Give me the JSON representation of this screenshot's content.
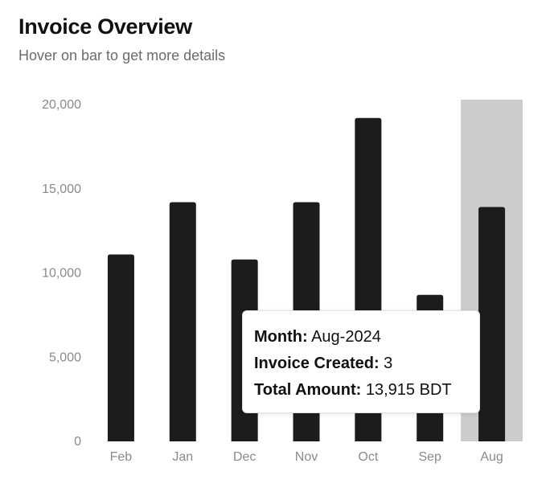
{
  "header": {
    "title": "Invoice Overview",
    "subtitle": "Hover on bar to get more details"
  },
  "chart_data": {
    "type": "bar",
    "categories": [
      "Feb",
      "Jan",
      "Dec",
      "Nov",
      "Oct",
      "Sep",
      "Aug"
    ],
    "values": [
      11100,
      14200,
      10800,
      14200,
      19200,
      8700,
      13915
    ],
    "ylim": [
      0,
      20000
    ],
    "yticks": [
      0,
      5000,
      10000,
      15000,
      20000
    ],
    "ytick_labels": [
      "0",
      "5,000",
      "10,000",
      "15,000",
      "20,000"
    ],
    "bar_color": "#1c1c1e",
    "highlight_color": "#cccccc",
    "highlighted_index": 6,
    "grid": false
  },
  "tooltip": {
    "month_label": "Month:",
    "month_value": "Aug-2024",
    "invoice_label": "Invoice Created:",
    "invoice_value": "3",
    "amount_label": "Total Amount:",
    "amount_value": "13,915 BDT"
  }
}
